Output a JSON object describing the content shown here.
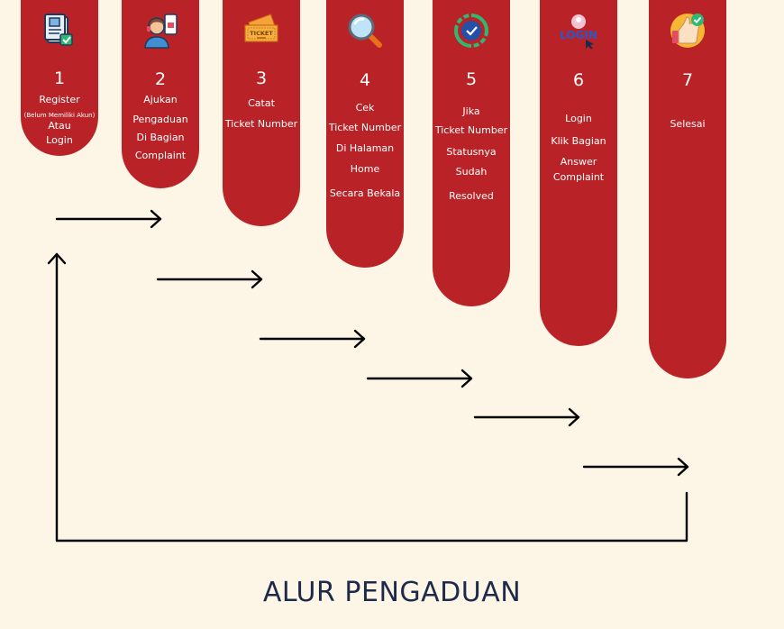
{
  "title": "ALUR PENGADUAN",
  "colors": {
    "accent": "#b92327",
    "background": "#fdf5e6",
    "title": "#1e2a4a",
    "arrow": "#000000"
  },
  "steps": [
    {
      "number": "1",
      "icon": "registration-form-icon",
      "lines": [
        "Register",
        "(Belum Memiliki Akun)",
        "Atau",
        "Login"
      ]
    },
    {
      "number": "2",
      "icon": "support-agent-icon",
      "lines": [
        "Ajukan",
        "Pengaduan",
        "Di Bagian",
        "Complaint"
      ]
    },
    {
      "number": "3",
      "icon": "ticket-icon",
      "lines": [
        "Catat",
        "Ticket Number"
      ]
    },
    {
      "number": "4",
      "icon": "magnifier-icon",
      "lines": [
        "Cek",
        "Ticket Number",
        "Di Halaman",
        "Home",
        "Secara Bekala"
      ]
    },
    {
      "number": "5",
      "icon": "resolved-check-icon",
      "lines": [
        "Jika",
        "Ticket Number",
        "Statusnya",
        "Sudah",
        "Resolved"
      ]
    },
    {
      "number": "6",
      "icon": "login-icon",
      "lines": [
        "Login",
        "Klik Bagian",
        "Answer",
        "Complaint"
      ],
      "icon_text": "LOGIN"
    },
    {
      "number": "7",
      "icon": "thumbs-up-check-icon",
      "lines": [
        "Selesai"
      ]
    }
  ]
}
